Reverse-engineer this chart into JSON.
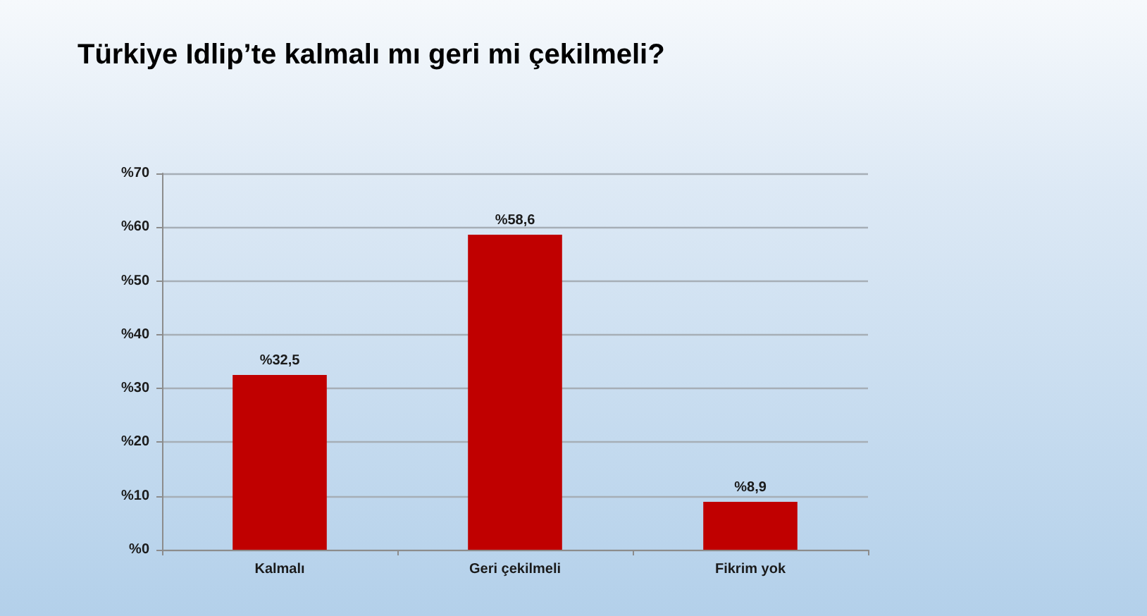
{
  "chart_data": {
    "type": "bar",
    "title": "Türkiye Idlip’te kalmalı mı geri mi çekilmeli?",
    "categories": [
      "Kalmalı",
      "Geri çekilmeli",
      "Fikrim yok"
    ],
    "values": [
      32.5,
      58.6,
      8.9
    ],
    "color": "#c00000",
    "value_labels": [
      "%32,5",
      "%58,6",
      "%8,9"
    ],
    "ylim": [
      0,
      70
    ],
    "yticks": [
      {
        "value": 0,
        "label": "%0"
      },
      {
        "value": 10,
        "label": "%10"
      },
      {
        "value": 20,
        "label": "%20"
      },
      {
        "value": 30,
        "label": "%30"
      },
      {
        "value": 40,
        "label": "%40"
      },
      {
        "value": 50,
        "label": "%50"
      },
      {
        "value": 60,
        "label": "%60"
      },
      {
        "value": 70,
        "label": "%70"
      }
    ],
    "grid": "y"
  }
}
